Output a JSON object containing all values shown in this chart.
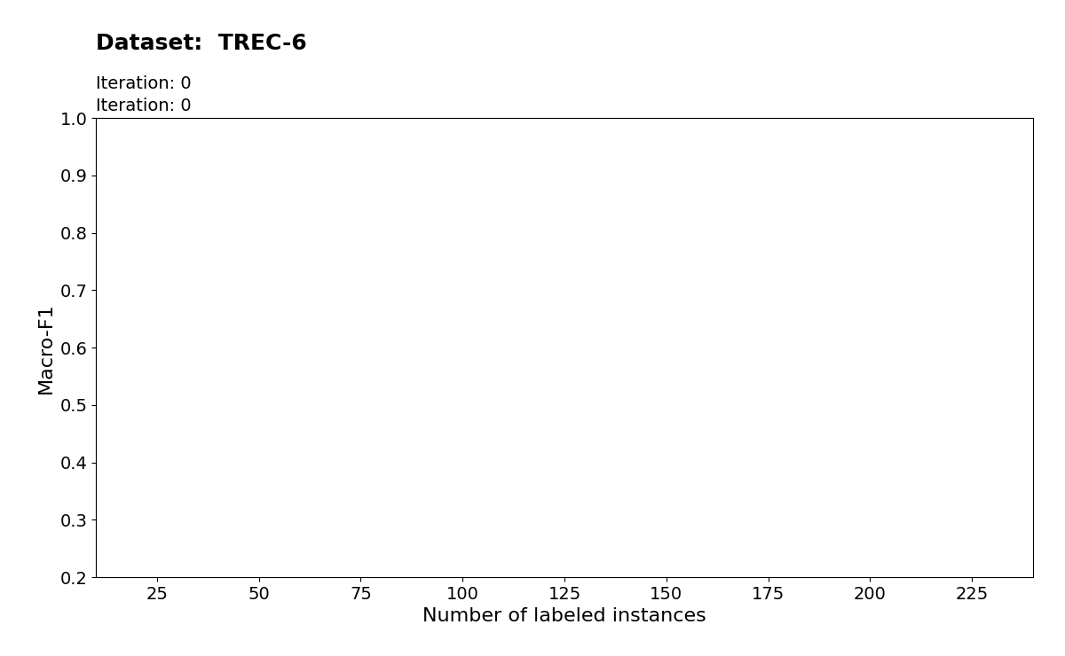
{
  "title_line1": "Dataset:  TREC-6",
  "title_line2": "Iteration: 0",
  "xlabel": "Number of labeled instances",
  "ylabel": "Macro-F1",
  "xlim": [
    10,
    240
  ],
  "ylim": [
    0.2,
    1.0
  ],
  "xticks": [
    25,
    50,
    75,
    100,
    125,
    150,
    175,
    200,
    225
  ],
  "yticks": [
    0.2,
    0.3,
    0.4,
    0.5,
    0.6,
    0.7,
    0.8,
    0.9,
    1.0
  ],
  "title_fontsize": 18,
  "subtitle_fontsize": 14,
  "axis_label_fontsize": 16,
  "tick_fontsize": 14,
  "background_color": "#ffffff"
}
